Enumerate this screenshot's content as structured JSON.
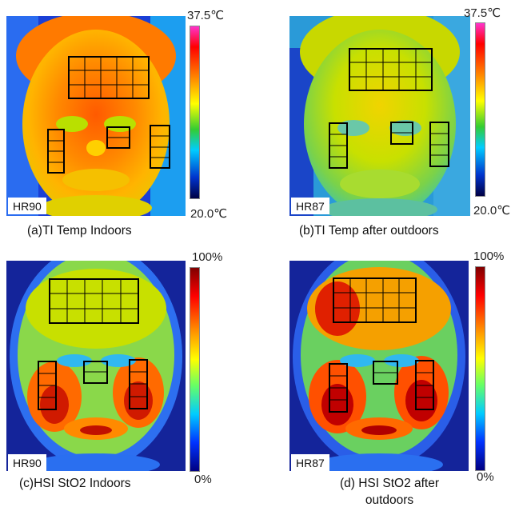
{
  "panels": [
    {
      "id": "a",
      "caption": "(a)TI Temp Indoors",
      "hr": "HR90",
      "scale_max": "37.5℃",
      "scale_min": "20.0℃",
      "kind": "thermal"
    },
    {
      "id": "b",
      "caption": "(b)TI Temp after outdoors",
      "hr": "HR87",
      "scale_max": "37.5℃",
      "scale_min": "20.0℃",
      "kind": "thermal-cool"
    },
    {
      "id": "c",
      "caption": "(c)HSI StO2 Indoors",
      "hr": "HR90",
      "scale_max": "100%",
      "scale_min": "0%",
      "kind": "hsi"
    },
    {
      "id": "d",
      "caption_line1": "(d) HSI StO2 after",
      "caption_line2": "outdoors",
      "hr": "HR87",
      "scale_max": "100%",
      "scale_min": "0%",
      "kind": "hsi"
    }
  ],
  "colors": {
    "thermal_scale": [
      "#ff33cc",
      "#ff0000",
      "#ff8800",
      "#ffff00",
      "#33cc33",
      "#00ccff",
      "#0033cc",
      "#000044"
    ],
    "hsi_scale": [
      "#800000",
      "#ff0000",
      "#ff8800",
      "#ffff00",
      "#66ff66",
      "#00ccff",
      "#0033ff",
      "#000080"
    ],
    "roi_outline": "#000000"
  }
}
